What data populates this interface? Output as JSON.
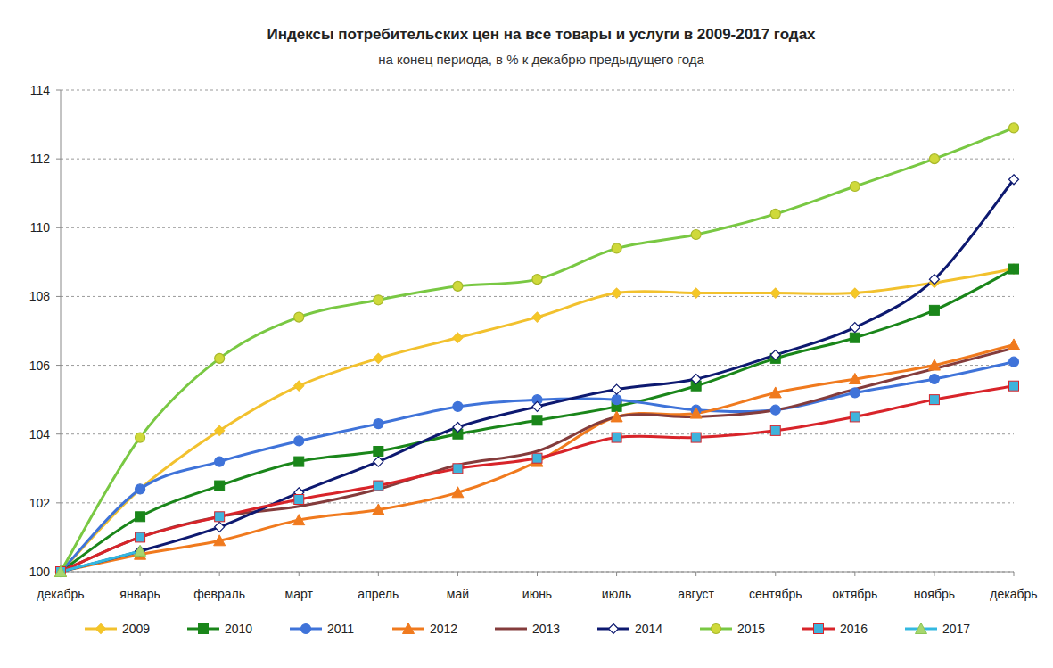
{
  "chart_data": {
    "type": "line",
    "title": "Индексы потребительских цен на все товары и услуги в 2009-2017 годах",
    "subtitle": "на конец периода, в % к декабрю предыдущего года",
    "categories": [
      "декабрь",
      "январь",
      "февраль",
      "март",
      "апрель",
      "май",
      "июнь",
      "июль",
      "август",
      "сентябрь",
      "октябрь",
      "ноябрь",
      "декабрь"
    ],
    "ylim": [
      100,
      114
    ],
    "yticks": [
      100,
      102,
      104,
      106,
      108,
      110,
      112,
      114
    ],
    "grid": true,
    "legend": "bottom",
    "series": [
      {
        "name": "2009",
        "color": "#f2c12e",
        "marker": "diamond",
        "values": [
          100,
          102.4,
          104.1,
          105.4,
          106.2,
          106.8,
          107.4,
          108.1,
          108.1,
          108.1,
          108.1,
          108.4,
          108.8
        ]
      },
      {
        "name": "2010",
        "color": "#1a861a",
        "marker": "square",
        "values": [
          100,
          101.6,
          102.5,
          103.2,
          103.5,
          104.0,
          104.4,
          104.8,
          105.4,
          106.2,
          106.8,
          107.6,
          108.8
        ]
      },
      {
        "name": "2011",
        "color": "#3f73d9",
        "marker": "circle",
        "values": [
          100,
          102.4,
          103.2,
          103.8,
          104.3,
          104.8,
          105.0,
          105.0,
          104.7,
          104.7,
          105.2,
          105.6,
          106.1
        ]
      },
      {
        "name": "2012",
        "color": "#f07a1e",
        "marker": "triangle",
        "values": [
          100,
          100.5,
          100.9,
          101.5,
          101.8,
          102.3,
          103.2,
          104.5,
          104.6,
          105.2,
          105.6,
          106.0,
          106.6
        ]
      },
      {
        "name": "2013",
        "color": "#843c3c",
        "marker": "none",
        "values": [
          100,
          101.0,
          101.6,
          101.9,
          102.4,
          103.1,
          103.5,
          104.5,
          104.5,
          104.7,
          105.3,
          105.9,
          106.5
        ]
      },
      {
        "name": "2014",
        "color": "#0d1970",
        "marker": "diamond-open",
        "values": [
          100,
          100.6,
          101.3,
          102.3,
          103.2,
          104.2,
          104.8,
          105.3,
          105.6,
          106.3,
          107.1,
          108.5,
          111.4
        ]
      },
      {
        "name": "2015",
        "color": "#79c843",
        "marker": "circle",
        "values": [
          100,
          103.9,
          106.2,
          107.4,
          107.9,
          108.3,
          108.5,
          109.4,
          109.8,
          110.4,
          111.2,
          112.0,
          112.9
        ]
      },
      {
        "name": "2016",
        "color": "#d8242a",
        "marker": "square",
        "values": [
          100,
          101.0,
          101.6,
          102.1,
          102.5,
          103.0,
          103.3,
          103.9,
          103.9,
          104.1,
          104.5,
          105.0,
          105.4
        ]
      },
      {
        "name": "2017",
        "color": "#33b8e0",
        "marker": "triangle",
        "values": [
          100,
          100.6,
          null,
          null,
          null,
          null,
          null,
          null,
          null,
          null,
          null,
          null,
          null
        ]
      }
    ]
  }
}
